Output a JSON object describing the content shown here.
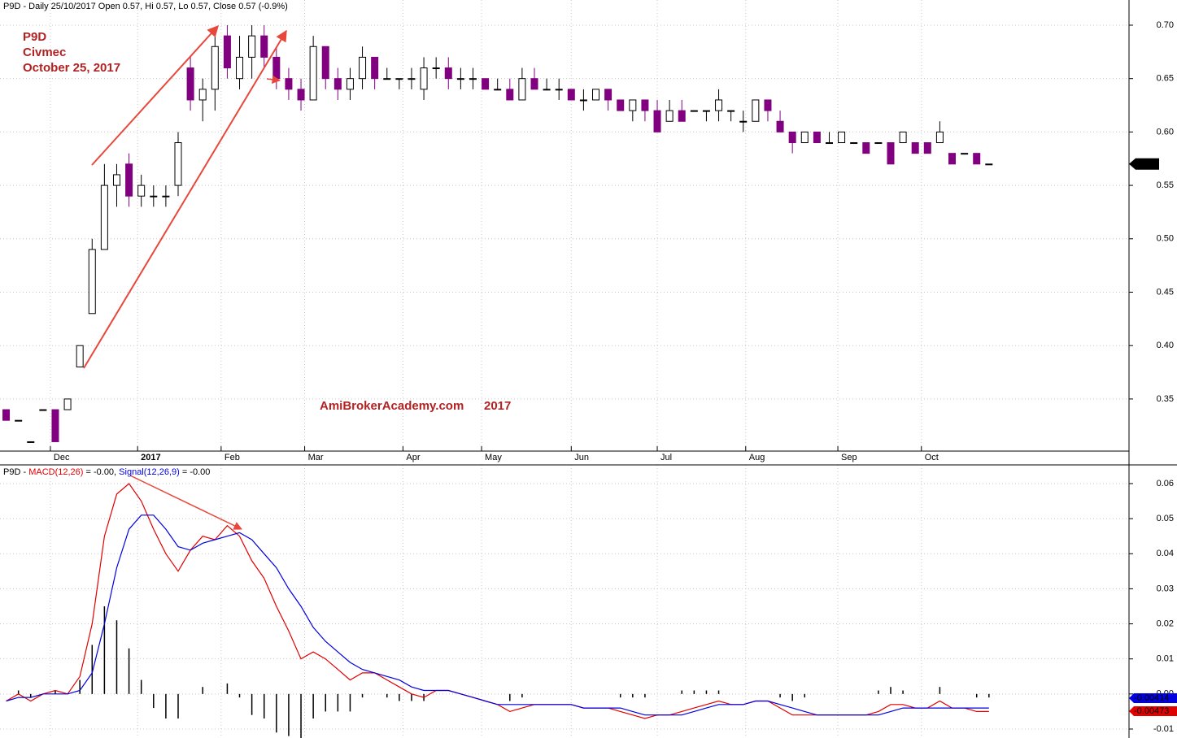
{
  "chart_data": [
    {
      "type": "candlestick",
      "title": "P9D - Daily 25/10/2017 Open 0.57, Hi 0.57, Lo 0.57, Close 0.57 (-0.9%)",
      "annotations": [
        "P9D",
        "Civmec",
        "October 25, 2017",
        "AmiBrokerAcademy.com",
        "2017"
      ],
      "last_label": "0.57",
      "up_color": "#ffffff",
      "down_color": "#800080",
      "xlim": [
        -0.5,
        91.4
      ],
      "xticks": [
        {
          "value": 3.6,
          "label": "Dec"
        },
        {
          "value": 10.7,
          "label": "2017"
        },
        {
          "value": 17.5,
          "label": "Feb"
        },
        {
          "value": 24.3,
          "label": "Mar"
        },
        {
          "value": 32.3,
          "label": "Apr"
        },
        {
          "value": 38.7,
          "label": "May"
        },
        {
          "value": 46,
          "label": "Jun"
        },
        {
          "value": 53,
          "label": "Jul"
        },
        {
          "value": 60.2,
          "label": "Aug"
        },
        {
          "value": 67.7,
          "label": "Sep"
        },
        {
          "value": 74.5,
          "label": "Oct"
        }
      ],
      "ylim": [
        0.3,
        0.72
      ],
      "yticks": [
        0.35,
        {
          "value": 0.4,
          "label": "0.40"
        },
        0.45,
        {
          "value": 0.5,
          "label": "0.50"
        },
        0.55,
        {
          "value": 0.6,
          "label": "0.60"
        },
        0.65,
        {
          "value": 0.7,
          "label": "0.70"
        }
      ],
      "grid": true,
      "open": [
        0.34,
        0.33,
        0.31,
        0.34,
        0.34,
        0.34,
        0.38,
        0.43,
        0.49,
        0.55,
        0.57,
        0.54,
        0.54,
        0.54,
        0.55,
        0.66,
        0.63,
        0.64,
        0.69,
        0.65,
        0.67,
        0.69,
        0.67,
        0.65,
        0.64,
        0.63,
        0.68,
        0.65,
        0.64,
        0.65,
        0.67,
        0.65,
        0.65,
        0.65,
        0.64,
        0.66,
        0.66,
        0.65,
        0.65,
        0.65,
        0.64,
        0.64,
        0.63,
        0.65,
        0.64,
        0.64,
        0.64,
        0.63,
        0.63,
        0.64,
        0.63,
        0.62,
        0.63,
        0.62,
        0.61,
        0.62,
        0.62,
        0.62,
        0.62,
        0.62,
        0.61,
        0.61,
        0.63,
        0.61,
        0.6,
        0.59,
        0.6,
        0.59,
        0.59,
        0.59,
        0.59,
        0.59,
        0.59,
        0.59,
        0.59,
        0.59,
        0.59,
        0.58,
        0.58,
        0.58,
        0.57
      ],
      "high": [
        0.34,
        0.33,
        0.31,
        0.34,
        0.34,
        0.35,
        0.4,
        0.5,
        0.57,
        0.57,
        0.58,
        0.56,
        0.55,
        0.55,
        0.6,
        0.67,
        0.65,
        0.69,
        0.7,
        0.69,
        0.7,
        0.7,
        0.68,
        0.66,
        0.65,
        0.69,
        0.68,
        0.66,
        0.66,
        0.68,
        0.67,
        0.66,
        0.65,
        0.66,
        0.67,
        0.67,
        0.67,
        0.66,
        0.66,
        0.65,
        0.65,
        0.65,
        0.66,
        0.66,
        0.65,
        0.65,
        0.64,
        0.64,
        0.64,
        0.64,
        0.63,
        0.63,
        0.63,
        0.63,
        0.63,
        0.63,
        0.62,
        0.62,
        0.64,
        0.62,
        0.62,
        0.63,
        0.63,
        0.62,
        0.6,
        0.6,
        0.6,
        0.6,
        0.6,
        0.59,
        0.59,
        0.59,
        0.59,
        0.6,
        0.59,
        0.59,
        0.61,
        0.58,
        0.58,
        0.58,
        0.57
      ],
      "low": [
        0.33,
        0.33,
        0.31,
        0.34,
        0.31,
        0.34,
        0.38,
        0.43,
        0.49,
        0.53,
        0.53,
        0.53,
        0.53,
        0.53,
        0.54,
        0.62,
        0.61,
        0.62,
        0.65,
        0.64,
        0.65,
        0.66,
        0.64,
        0.63,
        0.62,
        0.63,
        0.64,
        0.63,
        0.63,
        0.64,
        0.64,
        0.65,
        0.64,
        0.64,
        0.63,
        0.65,
        0.64,
        0.64,
        0.64,
        0.64,
        0.64,
        0.63,
        0.63,
        0.64,
        0.64,
        0.63,
        0.63,
        0.62,
        0.63,
        0.62,
        0.62,
        0.61,
        0.61,
        0.6,
        0.61,
        0.61,
        0.62,
        0.61,
        0.61,
        0.61,
        0.6,
        0.61,
        0.61,
        0.6,
        0.58,
        0.59,
        0.59,
        0.59,
        0.59,
        0.59,
        0.58,
        0.59,
        0.57,
        0.59,
        0.58,
        0.58,
        0.59,
        0.57,
        0.58,
        0.57,
        0.57
      ],
      "close": [
        0.33,
        0.33,
        0.31,
        0.34,
        0.31,
        0.35,
        0.4,
        0.49,
        0.55,
        0.56,
        0.54,
        0.55,
        0.54,
        0.54,
        0.59,
        0.63,
        0.64,
        0.68,
        0.66,
        0.67,
        0.69,
        0.67,
        0.65,
        0.64,
        0.63,
        0.68,
        0.65,
        0.64,
        0.65,
        0.67,
        0.65,
        0.65,
        0.65,
        0.65,
        0.66,
        0.66,
        0.65,
        0.65,
        0.65,
        0.64,
        0.64,
        0.63,
        0.65,
        0.64,
        0.64,
        0.64,
        0.63,
        0.63,
        0.64,
        0.63,
        0.62,
        0.63,
        0.62,
        0.6,
        0.62,
        0.61,
        0.62,
        0.62,
        0.63,
        0.62,
        0.61,
        0.63,
        0.62,
        0.6,
        0.59,
        0.6,
        0.59,
        0.59,
        0.6,
        0.59,
        0.58,
        0.59,
        0.57,
        0.6,
        0.58,
        0.58,
        0.6,
        0.57,
        0.58,
        0.57,
        0.57
      ]
    },
    {
      "type": "macd",
      "title": "P9D -",
      "xlim": [
        -0.5,
        91.4
      ],
      "ylim": [
        -0.012,
        0.065
      ],
      "yticks": [
        -0.01,
        {
          "value": 0,
          "label": "0.00"
        },
        0.01,
        0.02,
        0.03,
        0.04,
        0.05,
        0.06
      ],
      "grid": true,
      "series": [
        {
          "name": "MACD(12,26)",
          "readout": "= -0.00,",
          "marker_label": "-0.00473",
          "color": "#e00000",
          "values": [
            -0.002,
            0,
            -0.002,
            0,
            0.001,
            0,
            0.005,
            0.02,
            0.045,
            0.057,
            0.06,
            0.055,
            0.047,
            0.04,
            0.035,
            0.041,
            0.045,
            0.044,
            0.048,
            0.045,
            0.038,
            0.033,
            0.025,
            0.018,
            0.01,
            0.012,
            0.01,
            0.007,
            0.004,
            0.006,
            0.006,
            0.004,
            0.002,
            0,
            -0.001,
            0.001,
            0.001,
            0,
            -0.001,
            -0.002,
            -0.003,
            -0.005,
            -0.004,
            -0.003,
            -0.003,
            -0.003,
            -0.003,
            -0.004,
            -0.004,
            -0.004,
            -0.005,
            -0.006,
            -0.007,
            -0.006,
            -0.006,
            -0.005,
            -0.004,
            -0.003,
            -0.002,
            -0.003,
            -0.003,
            -0.002,
            -0.002,
            -0.004,
            -0.006,
            -0.006,
            -0.006,
            -0.006,
            -0.006,
            -0.006,
            -0.006,
            -0.005,
            -0.003,
            -0.003,
            -0.004,
            -0.004,
            -0.002,
            -0.004,
            -0.004,
            -0.005,
            -0.005
          ]
        },
        {
          "name": "Signal(12,26,9)",
          "readout": "= -0.00",
          "marker_label": "-0.00414",
          "color": "#0000e0",
          "values": [
            -0.002,
            -0.001,
            -0.001,
            0,
            0,
            0,
            0.001,
            0.006,
            0.02,
            0.036,
            0.047,
            0.051,
            0.051,
            0.047,
            0.042,
            0.041,
            0.043,
            0.044,
            0.045,
            0.046,
            0.044,
            0.04,
            0.036,
            0.03,
            0.025,
            0.019,
            0.015,
            0.012,
            0.009,
            0.007,
            0.006,
            0.005,
            0.004,
            0.002,
            0.001,
            0.001,
            0.001,
            0,
            -0.001,
            -0.002,
            -0.003,
            -0.003,
            -0.003,
            -0.003,
            -0.003,
            -0.003,
            -0.003,
            -0.004,
            -0.004,
            -0.004,
            -0.004,
            -0.005,
            -0.006,
            -0.006,
            -0.006,
            -0.006,
            -0.005,
            -0.004,
            -0.003,
            -0.003,
            -0.003,
            -0.002,
            -0.002,
            -0.003,
            -0.004,
            -0.005,
            -0.006,
            -0.006,
            -0.006,
            -0.006,
            -0.006,
            -0.006,
            -0.005,
            -0.004,
            -0.004,
            -0.004,
            -0.004,
            -0.004,
            -0.004,
            -0.004,
            -0.004
          ]
        }
      ],
      "histogram": {
        "color": "#000000",
        "values": [
          0,
          0.001,
          -0.001,
          0,
          0.001,
          0,
          0.004,
          0.014,
          0.025,
          0.021,
          0.013,
          0.004,
          -0.004,
          -0.007,
          -0.007,
          0,
          0.002,
          0,
          0.003,
          -0.001,
          -0.006,
          -0.007,
          -0.011,
          -0.012,
          -0.015,
          -0.007,
          -0.005,
          -0.005,
          -0.005,
          -0.001,
          0,
          -0.001,
          -0.002,
          -0.002,
          -0.002,
          0,
          0,
          0,
          0,
          0,
          0,
          -0.002,
          -0.001,
          0,
          0,
          0,
          0,
          0,
          0,
          0,
          -0.001,
          -0.001,
          -0.001,
          0,
          0,
          0.001,
          0.001,
          0.001,
          0.001,
          0,
          0,
          0,
          0,
          -0.001,
          -0.002,
          -0.001,
          0,
          0,
          0,
          0,
          0,
          0.001,
          0.002,
          0.001,
          0,
          0,
          0.002,
          0,
          0,
          -0.001,
          -0.001
        ]
      }
    }
  ]
}
